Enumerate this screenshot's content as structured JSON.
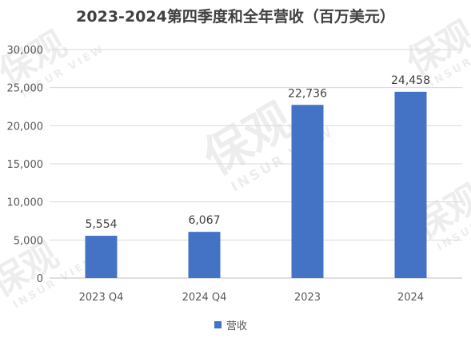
{
  "title": "2023-2024第四季度和全年营收（百万美元）",
  "watermark": {
    "logo_text": "保观",
    "sub_text": "INSUR VIEW"
  },
  "colors": {
    "bar": "#4472C4",
    "grid": "#d9d9d9",
    "axis": "#bfbfbf",
    "tick_text": "#595959",
    "label_text": "#404040"
  },
  "chart_data": {
    "type": "bar",
    "title": "2023-2024第四季度和全年营收（百万美元）",
    "categories": [
      "2023 Q4",
      "2024 Q4",
      "2023",
      "2024"
    ],
    "series": [
      {
        "name": "营收",
        "values": [
          5554,
          6067,
          22736,
          24458
        ]
      }
    ],
    "data_labels": [
      "5,554",
      "6,067",
      "22,736",
      "24,458"
    ],
    "y_ticks": [
      "0",
      "5,000",
      "10,000",
      "15,000",
      "20,000",
      "25,000",
      "30,000"
    ],
    "ylim": [
      0,
      30000
    ],
    "y_tick_step": 5000,
    "grid": true,
    "legend_position": "bottom",
    "xlabel": "",
    "ylabel": ""
  }
}
